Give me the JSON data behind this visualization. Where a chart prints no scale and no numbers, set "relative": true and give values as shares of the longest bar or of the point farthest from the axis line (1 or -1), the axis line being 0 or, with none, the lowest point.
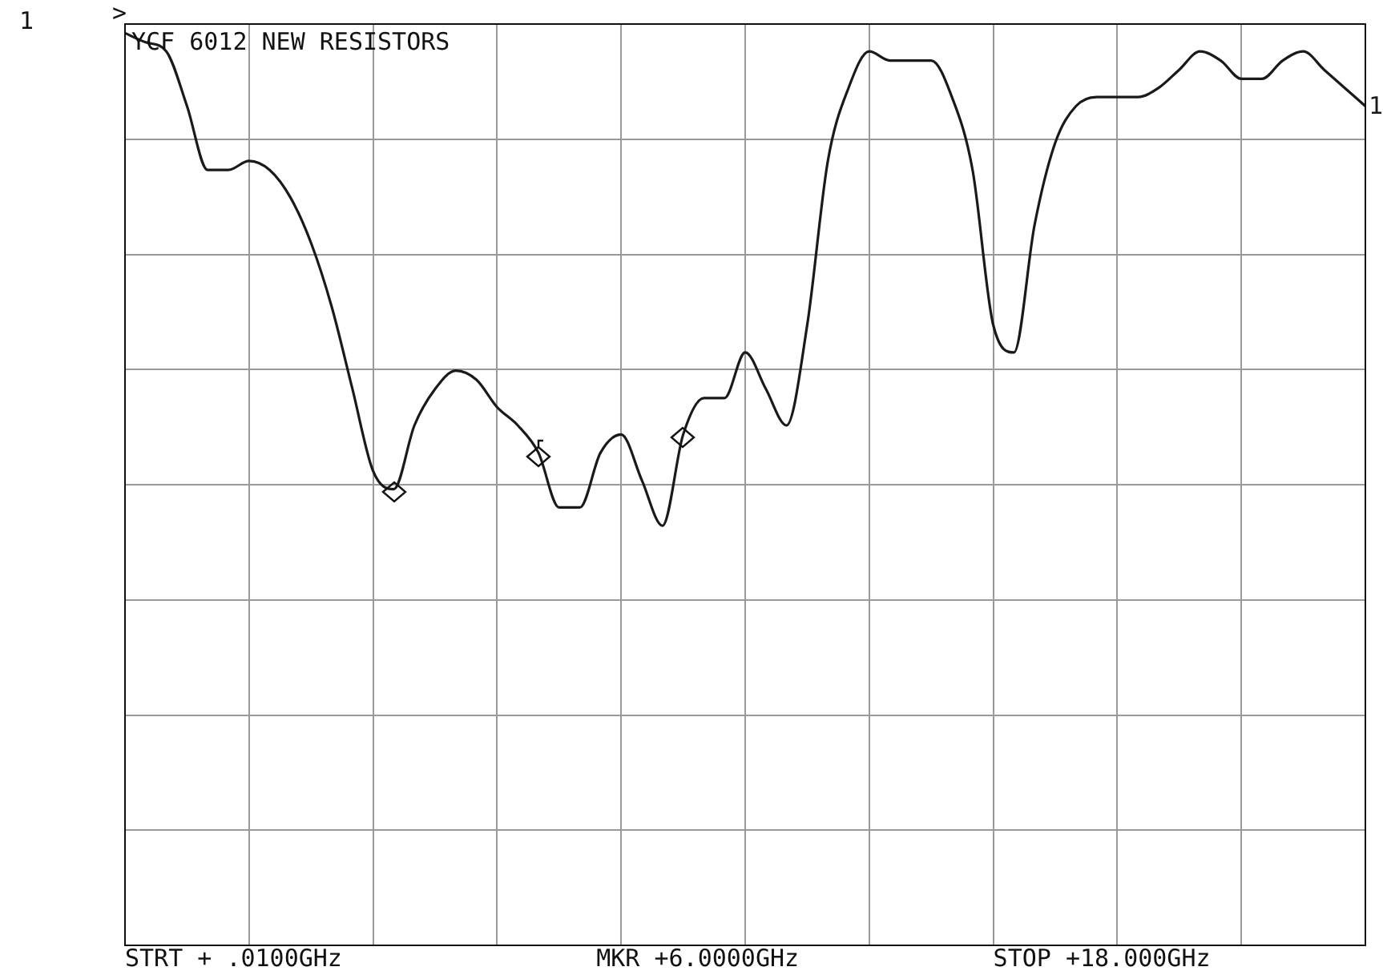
{
  "chart_data": {
    "type": "line",
    "title": "YCF 6012 NEW RESISTORS",
    "relative": true,
    "grid": true,
    "legend": false,
    "marker": "none",
    "categories": [
      null,
      null,
      null,
      null,
      null,
      null,
      null,
      null,
      null,
      null,
      null,
      null,
      null,
      null,
      null,
      null,
      null,
      null,
      null,
      null,
      null,
      null,
      null,
      null,
      null,
      null,
      null,
      null,
      null,
      null,
      null,
      null,
      null,
      null,
      null,
      null,
      null,
      null,
      null,
      null,
      null,
      null,
      null,
      null,
      null,
      null,
      null,
      null,
      null,
      null,
      null,
      null,
      null,
      null,
      null,
      null,
      null,
      null,
      null,
      null,
      null
    ],
    "series": [
      {
        "name": "1",
        "color": "#1a1a1a",
        "values": [
          1.0,
          0.99,
          0.98,
          0.92,
          0.85,
          0.85,
          0.86,
          0.85,
          0.82,
          0.77,
          0.7,
          0.61,
          0.52,
          0.5,
          0.57,
          0.61,
          0.63,
          0.62,
          0.59,
          0.57,
          0.54,
          0.48,
          0.48,
          0.54,
          0.56,
          0.51,
          0.46,
          0.56,
          0.6,
          0.6,
          0.65,
          0.61,
          0.57,
          0.68,
          0.86,
          0.94,
          0.98,
          0.97,
          0.97,
          0.97,
          0.93,
          0.85,
          0.68,
          0.65,
          0.79,
          0.88,
          0.92,
          0.93,
          0.93,
          0.93,
          0.94,
          0.96,
          0.98,
          0.97,
          0.95,
          0.95,
          0.97,
          0.98,
          0.96,
          0.94,
          0.92
        ]
      }
    ],
    "annotations": [
      "1",
      ">",
      "STRT + .0100GHz",
      "MKR +6.0000GHz",
      "STOP +18.000GHz"
    ]
  }
}
